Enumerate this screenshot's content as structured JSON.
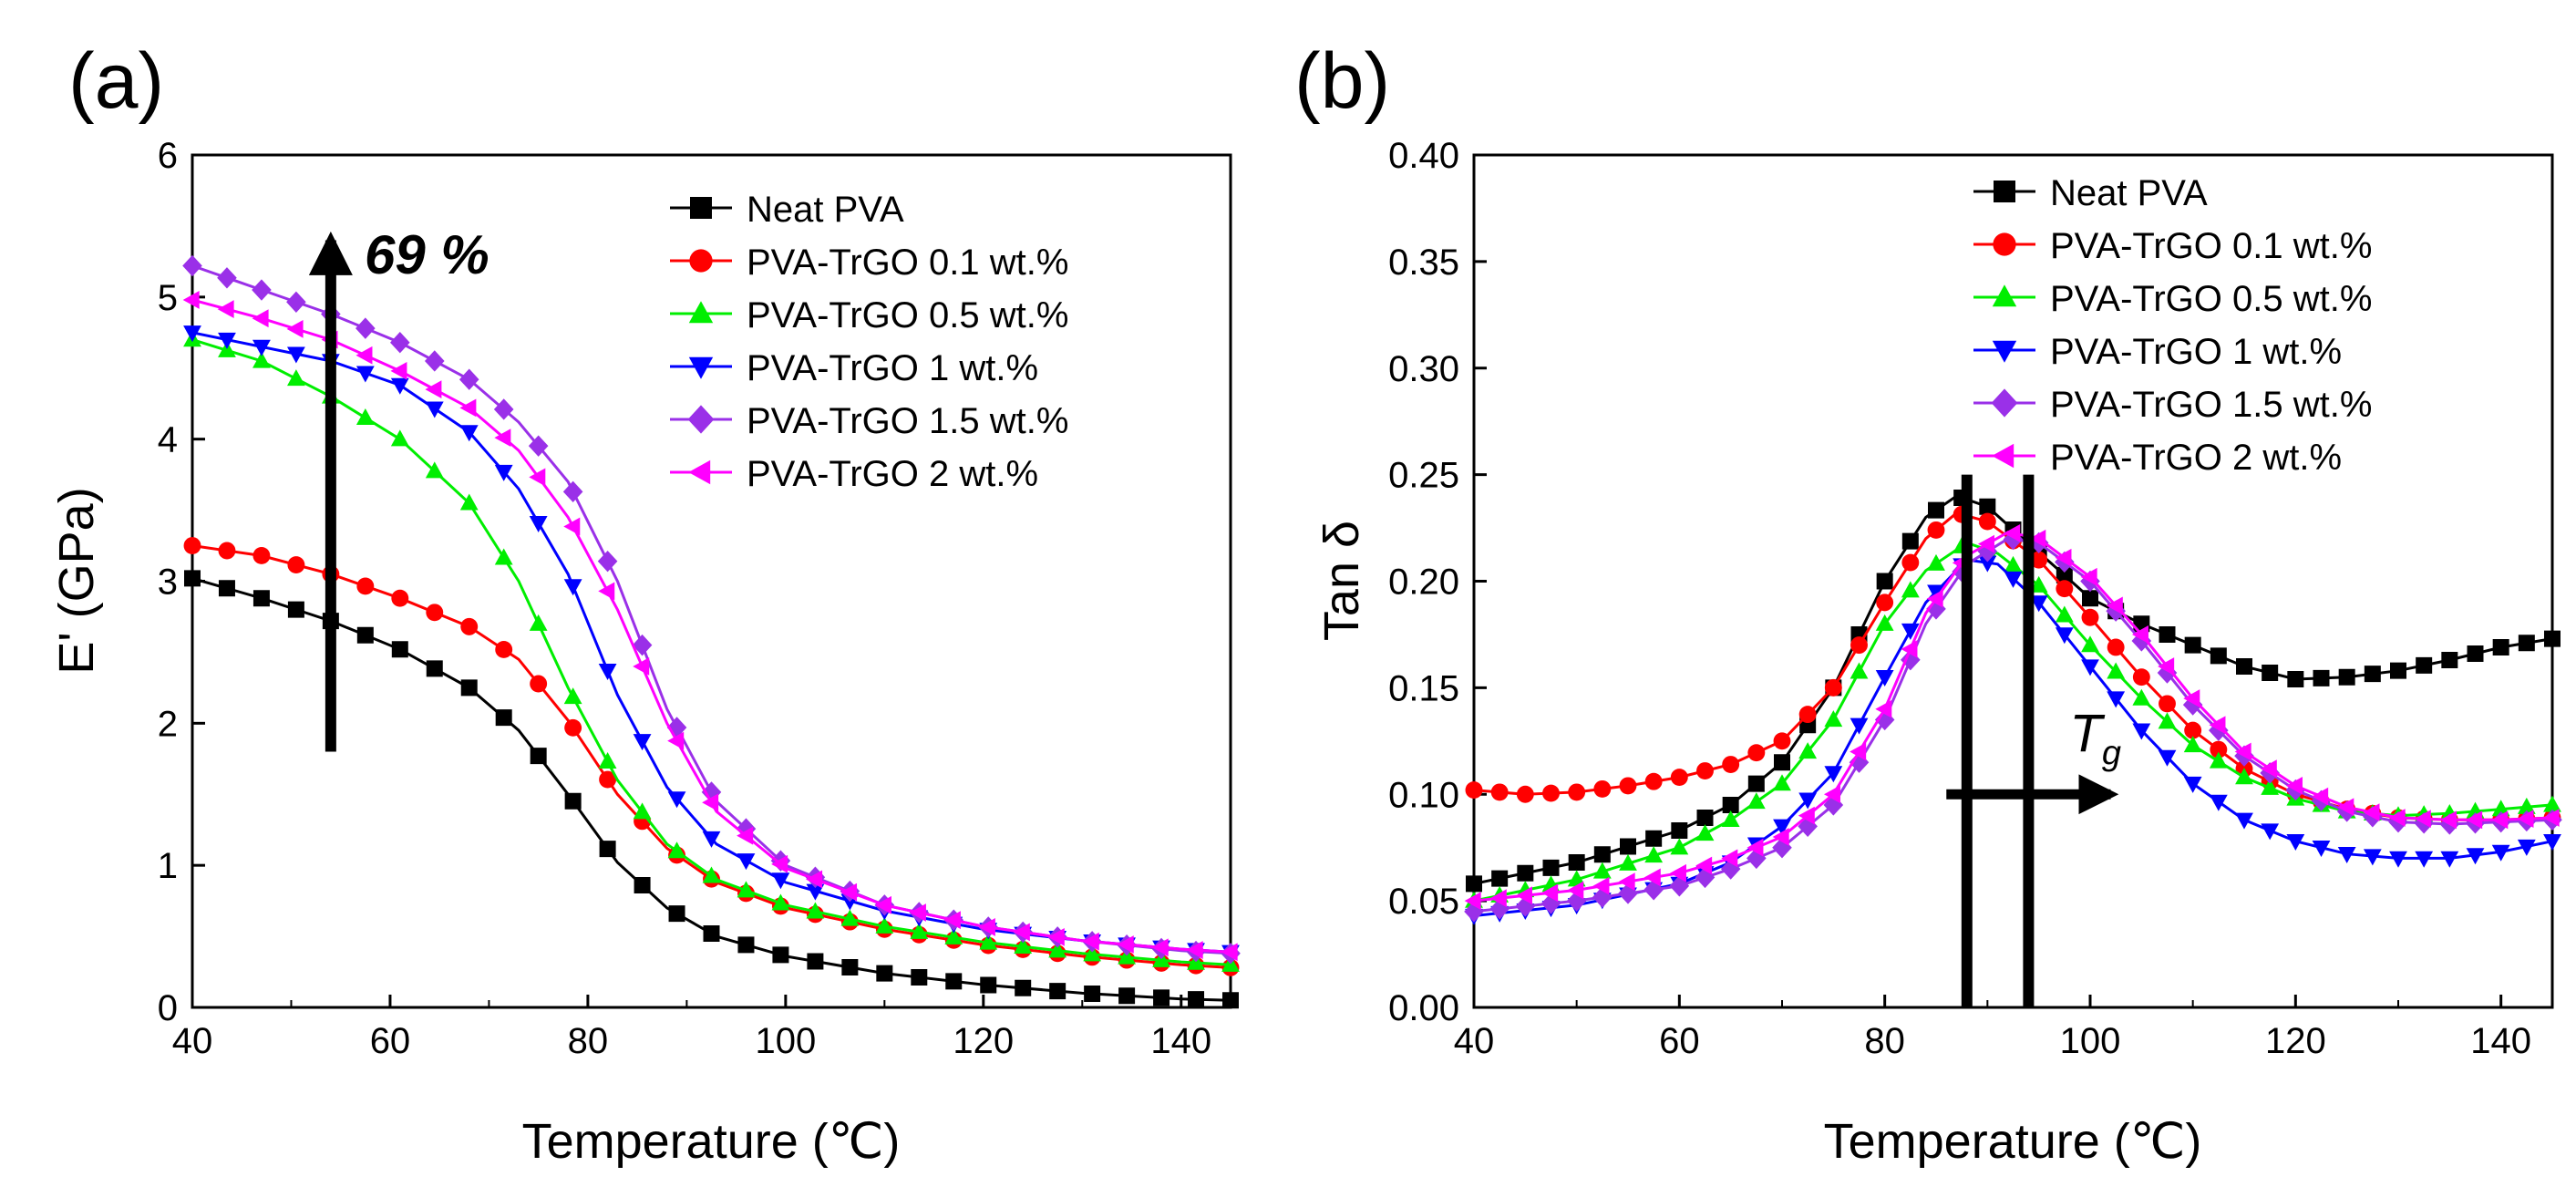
{
  "chart_data": [
    {
      "panel_label": "(a)",
      "type": "line",
      "xlabel": "Temperature (℃)",
      "ylabel": "E' (GPa)",
      "xlim": [
        40,
        145
      ],
      "ylim": [
        0,
        6
      ],
      "xticks": [
        "40",
        "60",
        "80",
        "100",
        "120",
        "140"
      ],
      "yticks": [
        "0",
        "1",
        "2",
        "3",
        "4",
        "5",
        "6"
      ],
      "legend_position": "top-right",
      "annotation": {
        "text": "69 %",
        "arrow_x": 54,
        "arrow_y_from": 1.8,
        "arrow_y_to": 5.4
      },
      "series": [
        {
          "name": "Neat PVA",
          "color": "#000000",
          "marker": "square",
          "x": [
            40,
            47,
            54,
            61,
            68,
            73,
            78,
            83,
            88,
            93,
            100,
            110,
            120,
            130,
            140,
            145
          ],
          "y": [
            3.02,
            2.88,
            2.72,
            2.52,
            2.25,
            1.95,
            1.5,
            1.02,
            0.7,
            0.5,
            0.36,
            0.24,
            0.16,
            0.1,
            0.06,
            0.05
          ]
        },
        {
          "name": "PVA-TrGO 0.1 wt.%",
          "color": "#ff0000",
          "marker": "circle",
          "x": [
            40,
            47,
            54,
            61,
            68,
            73,
            78,
            83,
            88,
            93,
            100,
            110,
            120,
            130,
            140,
            145
          ],
          "y": [
            3.25,
            3.18,
            3.05,
            2.88,
            2.68,
            2.45,
            2.02,
            1.5,
            1.12,
            0.88,
            0.7,
            0.55,
            0.44,
            0.36,
            0.3,
            0.28
          ]
        },
        {
          "name": "PVA-TrGO 0.5 wt.%",
          "color": "#00ee00",
          "marker": "triangle-up",
          "x": [
            40,
            47,
            54,
            61,
            68,
            73,
            78,
            83,
            88,
            93,
            100,
            110,
            120,
            130,
            140,
            145
          ],
          "y": [
            4.7,
            4.55,
            4.3,
            4.0,
            3.55,
            3.0,
            2.25,
            1.6,
            1.15,
            0.9,
            0.72,
            0.57,
            0.46,
            0.38,
            0.32,
            0.3
          ]
        },
        {
          "name": "PVA-TrGO 1 wt.%",
          "color": "#0000ff",
          "marker": "triangle-down",
          "x": [
            40,
            47,
            54,
            61,
            68,
            73,
            78,
            83,
            88,
            93,
            100,
            110,
            120,
            130,
            140,
            145
          ],
          "y": [
            4.75,
            4.65,
            4.55,
            4.38,
            4.05,
            3.65,
            3.05,
            2.2,
            1.55,
            1.15,
            0.88,
            0.68,
            0.55,
            0.47,
            0.41,
            0.39
          ]
        },
        {
          "name": "PVA-TrGO 1.5 wt.%",
          "color": "#9a30e8",
          "marker": "diamond",
          "x": [
            40,
            47,
            54,
            61,
            68,
            73,
            78,
            83,
            88,
            93,
            100,
            110,
            120,
            130,
            140,
            145
          ],
          "y": [
            5.22,
            5.05,
            4.88,
            4.68,
            4.42,
            4.12,
            3.7,
            3.0,
            2.1,
            1.45,
            1.0,
            0.72,
            0.57,
            0.47,
            0.4,
            0.38
          ]
        },
        {
          "name": "PVA-TrGO 2 wt.%",
          "color": "#ff00ff",
          "marker": "triangle-left",
          "x": [
            40,
            47,
            54,
            61,
            68,
            73,
            78,
            83,
            88,
            93,
            100,
            110,
            120,
            130,
            140,
            145
          ],
          "y": [
            4.98,
            4.85,
            4.7,
            4.48,
            4.22,
            3.92,
            3.45,
            2.8,
            2.0,
            1.38,
            0.98,
            0.72,
            0.57,
            0.47,
            0.41,
            0.39
          ]
        }
      ]
    },
    {
      "panel_label": "(b)",
      "type": "line",
      "xlabel": "Temperature (℃)",
      "ylabel": "Tan δ",
      "xlim": [
        40,
        145
      ],
      "ylim": [
        0,
        0.4
      ],
      "xticks": [
        "40",
        "60",
        "80",
        "100",
        "120",
        "140"
      ],
      "yticks": [
        "0.00",
        "0.05",
        "0.10",
        "0.15",
        "0.20",
        "0.25",
        "0.30",
        "0.35",
        "0.40"
      ],
      "legend_position": "top-right",
      "annotation": {
        "text": "T",
        "subscript": "g",
        "vlines_x": [
          88,
          94
        ],
        "arrow_x_from": 86,
        "arrow_x_to": 102,
        "arrow_y": 0.1
      },
      "series": [
        {
          "name": "Neat PVA",
          "color": "#000000",
          "marker": "square",
          "x": [
            40,
            50,
            60,
            65,
            70,
            75,
            80,
            84,
            87,
            90,
            93,
            97,
            100,
            105,
            110,
            115,
            120,
            125,
            130,
            135,
            140,
            145
          ],
          "y": [
            0.058,
            0.068,
            0.083,
            0.095,
            0.115,
            0.15,
            0.2,
            0.23,
            0.24,
            0.235,
            0.222,
            0.205,
            0.192,
            0.18,
            0.17,
            0.16,
            0.154,
            0.155,
            0.158,
            0.163,
            0.169,
            0.173
          ]
        },
        {
          "name": "PVA-TrGO 0.1 wt.%",
          "color": "#ff0000",
          "marker": "circle",
          "x": [
            40,
            45,
            50,
            55,
            60,
            65,
            70,
            75,
            80,
            84,
            87,
            90,
            95,
            100,
            105,
            110,
            115,
            120,
            125,
            130,
            135,
            140,
            145
          ],
          "y": [
            0.102,
            0.1,
            0.101,
            0.104,
            0.108,
            0.114,
            0.125,
            0.15,
            0.19,
            0.22,
            0.232,
            0.228,
            0.21,
            0.183,
            0.155,
            0.13,
            0.112,
            0.1,
            0.093,
            0.089,
            0.088,
            0.088,
            0.089
          ]
        },
        {
          "name": "PVA-TrGO 0.5 wt.%",
          "color": "#00ee00",
          "marker": "triangle-up",
          "x": [
            40,
            50,
            60,
            65,
            70,
            75,
            80,
            84,
            88,
            91,
            95,
            100,
            105,
            110,
            115,
            120,
            125,
            130,
            135,
            140,
            145
          ],
          "y": [
            0.05,
            0.06,
            0.075,
            0.088,
            0.105,
            0.135,
            0.18,
            0.205,
            0.218,
            0.213,
            0.198,
            0.17,
            0.145,
            0.123,
            0.108,
            0.098,
            0.092,
            0.09,
            0.091,
            0.093,
            0.095
          ]
        },
        {
          "name": "PVA-TrGO 1 wt.%",
          "color": "#0000ff",
          "marker": "triangle-down",
          "x": [
            40,
            50,
            60,
            65,
            70,
            75,
            80,
            84,
            88,
            91,
            95,
            100,
            105,
            110,
            115,
            120,
            125,
            130,
            135,
            140,
            145
          ],
          "y": [
            0.043,
            0.048,
            0.058,
            0.068,
            0.085,
            0.11,
            0.155,
            0.19,
            0.21,
            0.208,
            0.19,
            0.16,
            0.13,
            0.105,
            0.088,
            0.078,
            0.072,
            0.07,
            0.07,
            0.073,
            0.078
          ]
        },
        {
          "name": "PVA-TrGO 1.5 wt.%",
          "color": "#9a30e8",
          "marker": "diamond",
          "x": [
            40,
            50,
            60,
            65,
            70,
            75,
            80,
            84,
            88,
            92,
            95,
            100,
            105,
            110,
            115,
            120,
            125,
            130,
            135,
            140,
            145
          ],
          "y": [
            0.045,
            0.05,
            0.057,
            0.065,
            0.075,
            0.095,
            0.135,
            0.18,
            0.208,
            0.22,
            0.218,
            0.2,
            0.172,
            0.142,
            0.118,
            0.102,
            0.092,
            0.087,
            0.086,
            0.087,
            0.088
          ]
        },
        {
          "name": "PVA-TrGO 2 wt.%",
          "color": "#ff00ff",
          "marker": "triangle-left",
          "x": [
            40,
            50,
            60,
            65,
            70,
            75,
            80,
            84,
            88,
            92,
            95,
            100,
            105,
            110,
            115,
            120,
            125,
            130,
            135,
            140,
            145
          ],
          "y": [
            0.05,
            0.055,
            0.063,
            0.07,
            0.08,
            0.1,
            0.14,
            0.185,
            0.212,
            0.223,
            0.22,
            0.202,
            0.175,
            0.145,
            0.12,
            0.104,
            0.094,
            0.089,
            0.088,
            0.088,
            0.089
          ]
        }
      ]
    }
  ]
}
